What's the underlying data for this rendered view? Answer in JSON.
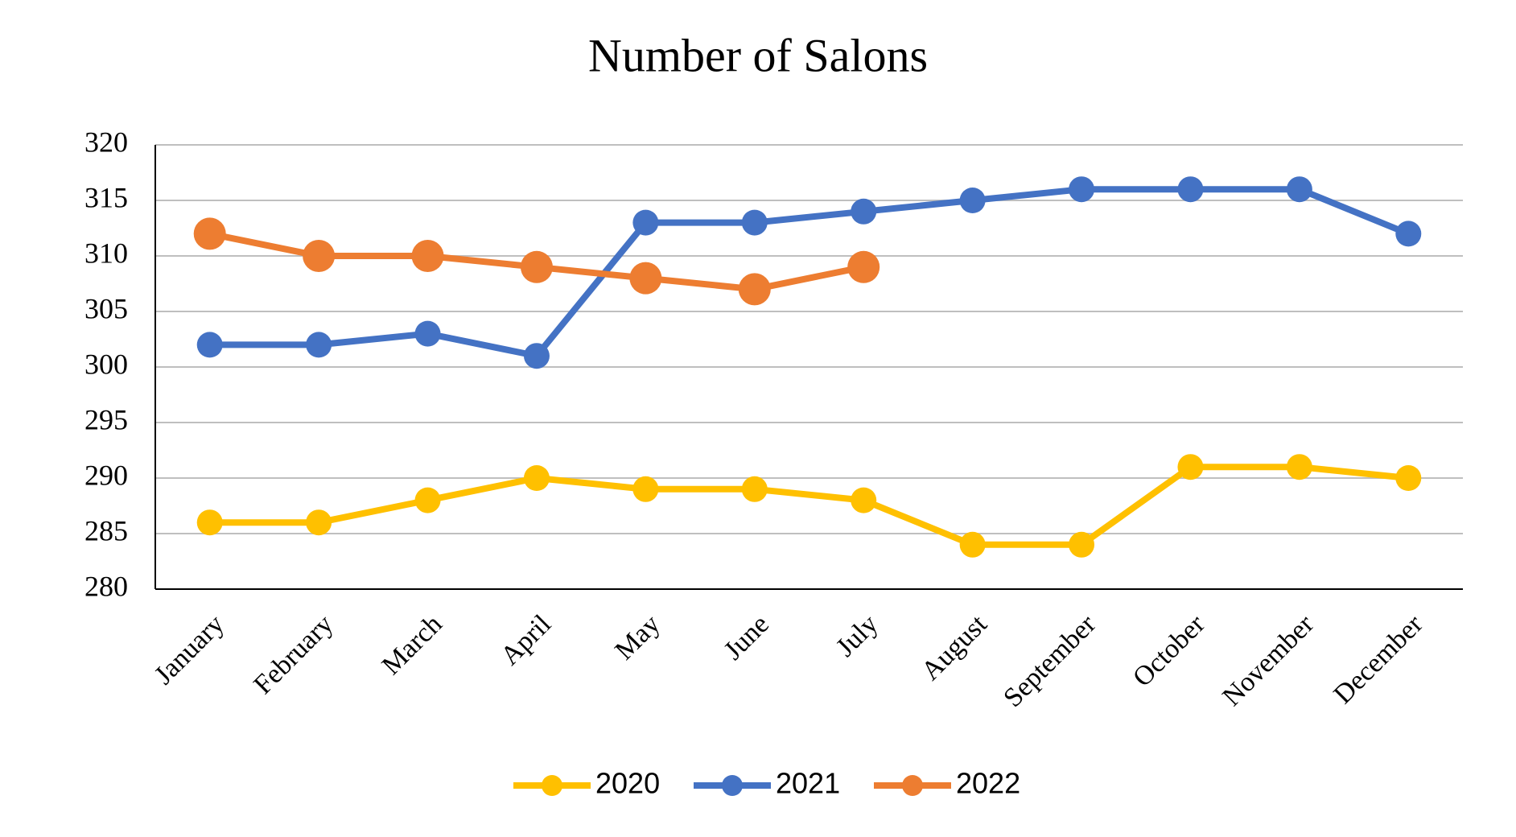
{
  "chart_data": {
    "type": "line",
    "title": "Number of Salons",
    "categories": [
      "January",
      "February",
      "March",
      "April",
      "May",
      "June",
      "July",
      "August",
      "September",
      "October",
      "November",
      "December"
    ],
    "series": [
      {
        "name": "2020",
        "color": "#ffc000",
        "values": [
          286,
          286,
          288,
          290,
          289,
          289,
          288,
          284,
          284,
          291,
          291,
          290
        ]
      },
      {
        "name": "2021",
        "color": "#4472c4",
        "values": [
          302,
          302,
          303,
          301,
          313,
          313,
          314,
          315,
          316,
          316,
          316,
          312
        ]
      },
      {
        "name": "2022",
        "color": "#ed7d31",
        "values": [
          312,
          310,
          310,
          309,
          308,
          307,
          309,
          null,
          null,
          null,
          null,
          null
        ]
      }
    ],
    "ylim": [
      280,
      320
    ],
    "yticks": [
      280,
      285,
      290,
      295,
      300,
      305,
      310,
      315,
      320
    ],
    "grid": true,
    "legend": "bottom"
  }
}
